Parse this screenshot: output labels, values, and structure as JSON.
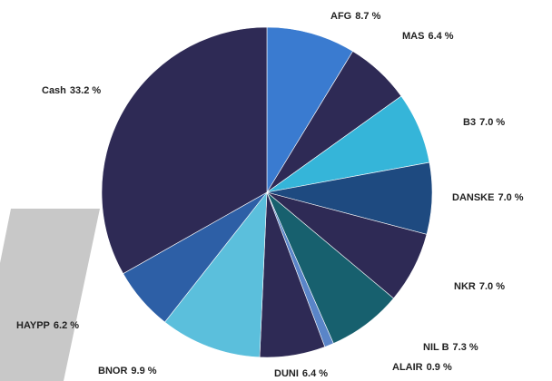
{
  "chart_data": {
    "type": "pie",
    "categories": [
      "AFG",
      "MAS",
      "B3",
      "DANSKE",
      "NKR",
      "NIL B",
      "ALAIR",
      "DUNI",
      "BNOR",
      "HAYPP",
      "Cash"
    ],
    "values": [
      8.7,
      6.4,
      7.0,
      7.0,
      7.0,
      7.3,
      0.9,
      6.4,
      9.9,
      6.2,
      33.2
    ],
    "value_labels": [
      "8.7 %",
      "6.4 %",
      "7.0 %",
      "7.0 %",
      "7.0 %",
      "7.3 %",
      "0.9 %",
      "6.4 %",
      "9.9 %",
      "6.2 %",
      "33.2 %"
    ],
    "colors": [
      "#3a7bd0",
      "#2e2a55",
      "#35b5d9",
      "#1e4a80",
      "#2e2a55",
      "#17606e",
      "#5a85c8",
      "#2e2a55",
      "#5bbfdc",
      "#2d5fa6",
      "#2e2a55"
    ]
  }
}
